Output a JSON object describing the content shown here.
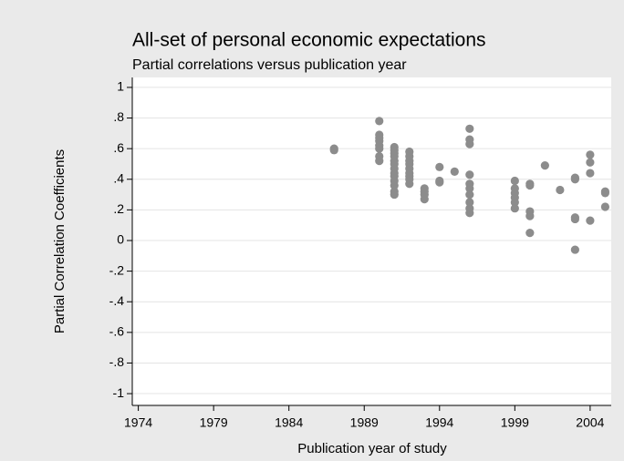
{
  "chart_data": {
    "type": "scatter",
    "title": "All-set of personal economic expectations",
    "subtitle": "Partial correlations versus publication year",
    "x_label": "Publication year of study",
    "y_label": "Partial Correlation Coefficients",
    "color": "#8c8c8c",
    "grid": true,
    "xlim": [
      1973.6,
      2005.4
    ],
    "xticks": [
      1974,
      1979,
      1984,
      1989,
      1994,
      1999,
      2004
    ],
    "ylim": [
      -1.077,
      1.065
    ],
    "yticks": [
      1,
      {
        "value": 0.8,
        "label": ".8"
      },
      {
        "value": 0.6,
        "label": ".6"
      },
      {
        "value": 0.4,
        "label": ".4"
      },
      {
        "value": 0.2,
        "label": ".2"
      },
      0,
      {
        "value": -0.2,
        "label": "-.2"
      },
      {
        "value": -0.4,
        "label": "-.4"
      },
      {
        "value": -0.6,
        "label": "-.6"
      },
      {
        "value": -0.8,
        "label": "-.8"
      },
      -1
    ],
    "x": [
      1987,
      1987,
      1990,
      1990,
      1990,
      1990,
      1990,
      1990,
      1990,
      1990,
      1991,
      1991,
      1991,
      1991,
      1991,
      1991,
      1991,
      1991,
      1991,
      1991,
      1991,
      1991,
      1991,
      1992,
      1992,
      1992,
      1992,
      1992,
      1992,
      1992,
      1992,
      1992,
      1993,
      1993,
      1993,
      1993,
      1994,
      1994,
      1994,
      1995,
      1996,
      1996,
      1996,
      1996,
      1996,
      1996,
      1996,
      1996,
      1996,
      1996,
      1999,
      1999,
      1999,
      1999,
      1999,
      1999,
      2000,
      2000,
      2000,
      2000,
      2000,
      2001,
      2002,
      2003,
      2003,
      2003,
      2003,
      2003,
      2004,
      2004,
      2004,
      2004,
      2005,
      2005,
      2005
    ],
    "values": [
      0.59,
      0.6,
      0.78,
      0.69,
      0.67,
      0.65,
      0.62,
      0.6,
      0.55,
      0.52,
      0.61,
      0.59,
      0.57,
      0.55,
      0.52,
      0.5,
      0.47,
      0.44,
      0.42,
      0.39,
      0.36,
      0.32,
      0.3,
      0.58,
      0.55,
      0.52,
      0.5,
      0.47,
      0.44,
      0.42,
      0.4,
      0.37,
      0.34,
      0.32,
      0.3,
      0.27,
      0.48,
      0.39,
      0.38,
      0.45,
      0.73,
      0.66,
      0.63,
      0.43,
      0.37,
      0.34,
      0.3,
      0.25,
      0.21,
      0.18,
      0.39,
      0.34,
      0.31,
      0.28,
      0.25,
      0.21,
      0.37,
      0.36,
      0.19,
      0.16,
      0.05,
      0.49,
      0.33,
      0.41,
      0.4,
      0.15,
      0.14,
      -0.06,
      0.56,
      0.51,
      0.44,
      0.13,
      0.32,
      0.31,
      0.22
    ]
  }
}
